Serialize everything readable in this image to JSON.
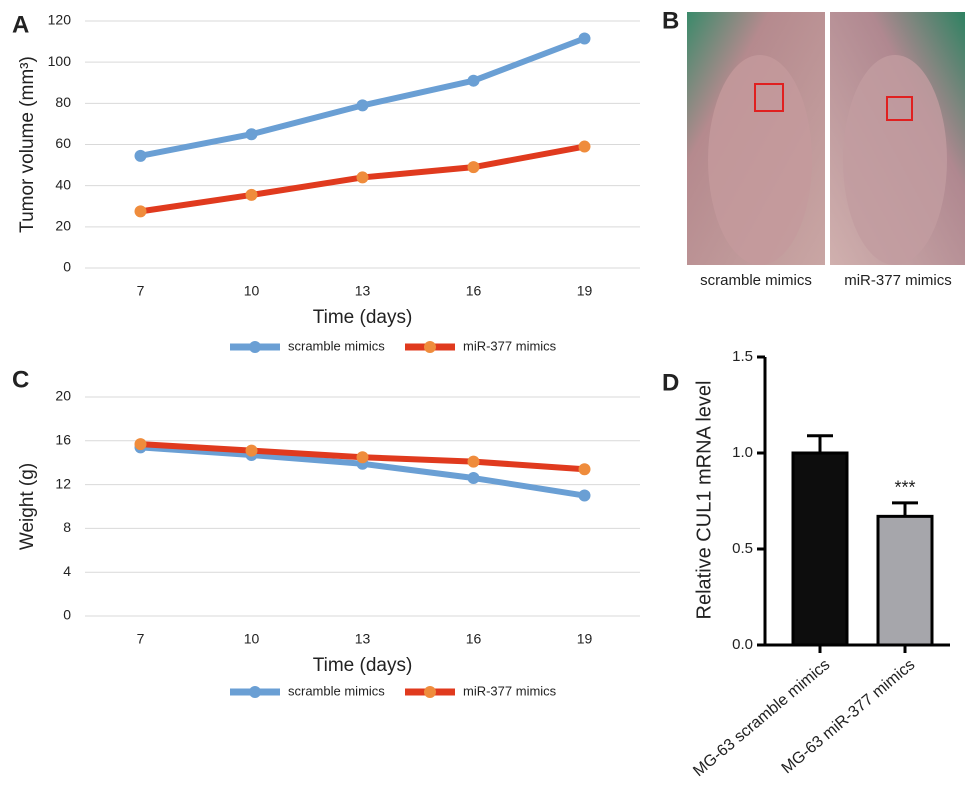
{
  "panels": {
    "labels": [
      "A",
      "B",
      "C",
      "D"
    ]
  },
  "photo": {
    "captions": [
      "scramble mimics",
      "miR-377 mimics"
    ]
  },
  "chart_data": [
    {
      "type": "line",
      "x_label": "Time (days)",
      "y_label": "Tumor volume (mm³)",
      "categories": [
        "7",
        "10",
        "13",
        "16",
        "19"
      ],
      "series": [
        {
          "name": "scramble mimics",
          "color": "#6a9fd4",
          "marker_color": "#6a9fd4",
          "values": [
            54.5,
            65,
            79,
            91,
            111.5
          ]
        },
        {
          "name": "miR-377 mimics",
          "color": "#e03a1e",
          "marker_color": "#ef8c3c",
          "values": [
            27.5,
            35.5,
            44,
            49,
            59
          ]
        }
      ],
      "ylim": [
        0,
        120
      ],
      "yticks": [
        0,
        20,
        40,
        60,
        80,
        100,
        120
      ],
      "grid": true,
      "legend": "bottom"
    },
    {
      "type": "line",
      "x_label": "Time (days)",
      "y_label": "Weight (g)",
      "categories": [
        "7",
        "10",
        "13",
        "16",
        "19"
      ],
      "series": [
        {
          "name": "scramble mimics",
          "color": "#6a9fd4",
          "marker_color": "#6a9fd4",
          "values": [
            15.4,
            14.7,
            13.9,
            12.6,
            11.0
          ]
        },
        {
          "name": "miR-377 mimics",
          "color": "#e03a1e",
          "marker_color": "#ef8c3c",
          "values": [
            15.7,
            15.1,
            14.5,
            14.1,
            13.4
          ]
        }
      ],
      "ylim": [
        0,
        20
      ],
      "yticks": [
        0,
        4,
        8,
        12,
        16,
        20
      ],
      "grid": true,
      "legend": "bottom"
    },
    {
      "type": "bar",
      "y_label": "Relative CUL1 mRNA level",
      "categories": [
        "MG-63 scramble mimics",
        "MG-63 miR-377 mimics"
      ],
      "values": [
        1.0,
        0.67
      ],
      "errors": [
        0.09,
        0.07
      ],
      "colors": [
        "#0d0d0d",
        "#a6a6ab"
      ],
      "annotations": [
        null,
        "***"
      ],
      "ylim": [
        0,
        1.5
      ],
      "yticks": [
        {
          "value": 0,
          "label": "0.0"
        },
        0.5,
        {
          "value": 1,
          "label": "1.0"
        },
        1.5
      ]
    }
  ]
}
